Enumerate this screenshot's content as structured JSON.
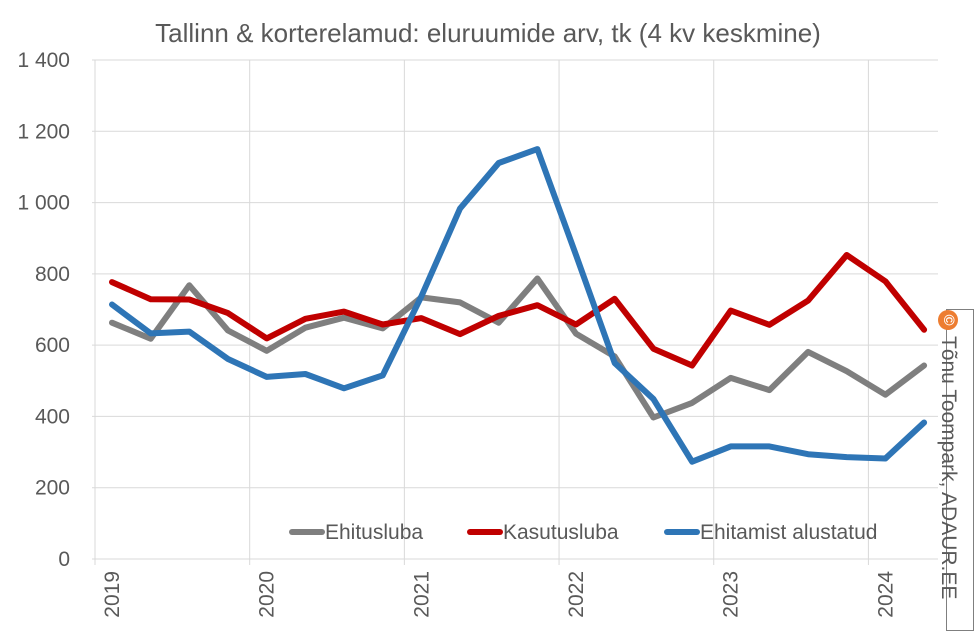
{
  "chart_data": {
    "type": "line",
    "title": "Tallinn & korterelamud: eluruumide arv, tk (4 kv keskmine)",
    "xlabel": "",
    "ylabel": "",
    "ylim": [
      0,
      1400
    ],
    "yticks": [
      0,
      200,
      400,
      600,
      800,
      1000,
      1200,
      1400
    ],
    "ytick_labels": [
      "0",
      "200",
      "400",
      "600",
      "800",
      "1 000",
      "1 200",
      "1 400"
    ],
    "xtick_labels": [
      "2019",
      "2020",
      "2021",
      "2022",
      "2023",
      "2024"
    ],
    "x": [
      "2019 Q1",
      "2019 Q2",
      "2019 Q3",
      "2019 Q4",
      "2020 Q1",
      "2020 Q2",
      "2020 Q3",
      "2020 Q4",
      "2021 Q1",
      "2021 Q2",
      "2021 Q3",
      "2021 Q4",
      "2022 Q1",
      "2022 Q2",
      "2022 Q3",
      "2022 Q4",
      "2023 Q1",
      "2023 Q2",
      "2023 Q3",
      "2023 Q4",
      "2024 Q1",
      "2024 Q2"
    ],
    "grid": true,
    "legend_position": "bottom-right",
    "series": [
      {
        "name": "Ehitusluba",
        "color": "#7f7f7f",
        "values": [
          663,
          618,
          768,
          641,
          584,
          649,
          677,
          647,
          734,
          720,
          663,
          787,
          632,
          568,
          397,
          438,
          508,
          474,
          581,
          527,
          461,
          543
        ]
      },
      {
        "name": "Kasutusluba",
        "color": "#c00000",
        "values": [
          777,
          729,
          728,
          690,
          619,
          674,
          694,
          658,
          676,
          631,
          682,
          712,
          658,
          730,
          590,
          543,
          697,
          657,
          725,
          853,
          779,
          643
        ]
      },
      {
        "name": "Ehitamist alustatud",
        "color": "#2e75b6",
        "values": [
          714,
          633,
          638,
          561,
          511,
          519,
          479,
          515,
          737,
          983,
          1111,
          1150,
          853,
          550,
          449,
          273,
          316,
          316,
          294,
          286,
          282,
          383
        ]
      }
    ]
  },
  "credit": {
    "symbol": "©",
    "text": "Tõnu Toompark, ADAUR.EE",
    "badge_color": "#ed7d31"
  }
}
